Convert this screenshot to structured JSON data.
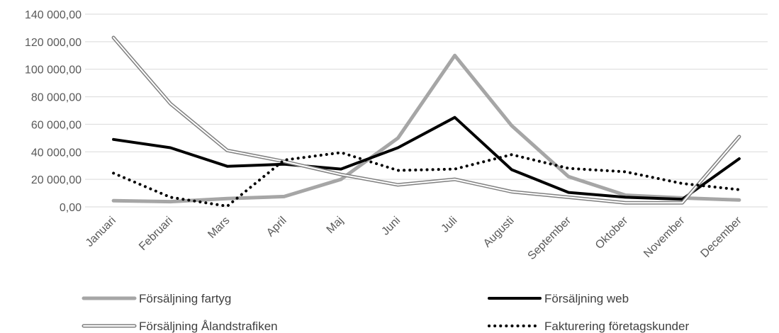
{
  "chart_data": {
    "type": "line",
    "categories": [
      "Januari",
      "Februari",
      "Mars",
      "April",
      "Maj",
      "Juni",
      "Juli",
      "Augusti",
      "September",
      "Oktober",
      "November",
      "December"
    ],
    "ylim": [
      0,
      140000
    ],
    "yticks": [
      0,
      20000,
      40000,
      60000,
      80000,
      100000,
      120000,
      140000
    ],
    "ytick_labels": [
      "0,00",
      "20 000,00",
      "40 000,00",
      "60 000,00",
      "80 000,00",
      "100 000,00",
      "120 000,00",
      "140 000,00"
    ],
    "grid": true,
    "legend_position": "bottom",
    "series": [
      {
        "name": "Försäljning fartyg",
        "style": "solid-thick",
        "color": "#a6a6a6",
        "values": [
          4500,
          3800,
          6000,
          7500,
          20000,
          50000,
          110000,
          59000,
          22000,
          8500,
          6500,
          5000
        ]
      },
      {
        "name": "Försäljning web",
        "style": "solid",
        "color": "#000000",
        "values": [
          49000,
          43000,
          29500,
          31000,
          27500,
          43000,
          65000,
          27000,
          10500,
          7000,
          5500,
          35000
        ]
      },
      {
        "name": "Försäljning Ålandstrafiken",
        "style": "double",
        "color": "#808080",
        "values": [
          123000,
          75000,
          41000,
          33000,
          23500,
          16000,
          20000,
          11000,
          7000,
          3000,
          3000,
          51000
        ]
      },
      {
        "name": "Fakturering företagskunder",
        "style": "dotted",
        "color": "#000000",
        "values": [
          24500,
          7000,
          500,
          34000,
          39500,
          26500,
          27500,
          38000,
          28000,
          25500,
          17000,
          12500
        ]
      }
    ]
  }
}
